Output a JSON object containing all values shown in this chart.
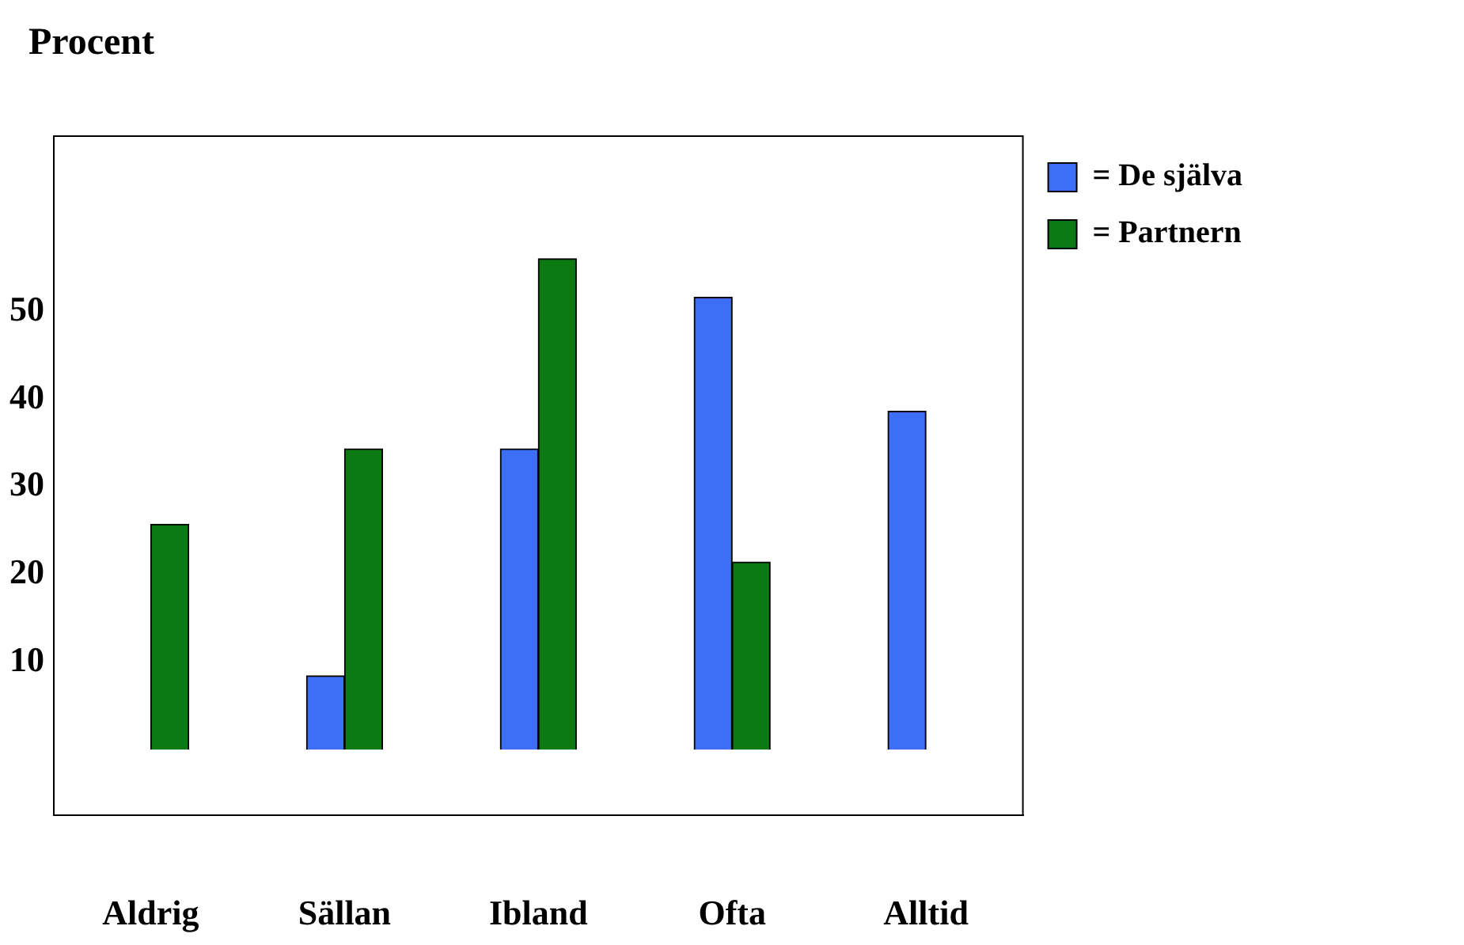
{
  "chart_data": {
    "type": "bar",
    "title": "Procent",
    "categories": [
      "Aldrig",
      "Sällan",
      "Ibland",
      "Ofta",
      "Alltid"
    ],
    "series": [
      {
        "name": "= De själva",
        "color": "#3d6ff6",
        "values": [
          null,
          8.4,
          34.3,
          51.6,
          38.6
        ]
      },
      {
        "name": "= Partnern",
        "color": "#0b7a12",
        "values": [
          25.7,
          34.3,
          56,
          21.4,
          null
        ]
      }
    ],
    "ylim": [
      -7.5,
      70
    ],
    "yticks": [
      10,
      20,
      30,
      40,
      50
    ],
    "grid": false,
    "legend": "top right"
  }
}
